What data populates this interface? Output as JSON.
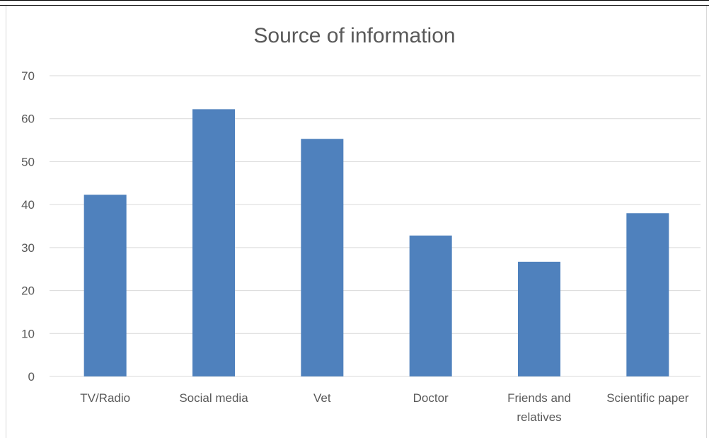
{
  "chart_data": {
    "type": "bar",
    "title": "Source of information",
    "categories": [
      "TV/Radio",
      "Social media",
      "Vet",
      "Doctor",
      "Friends and relatives",
      "Scientific paper"
    ],
    "category_lines": [
      [
        "TV/Radio"
      ],
      [
        "Social media"
      ],
      [
        "Vet"
      ],
      [
        "Doctor"
      ],
      [
        "Friends and",
        "relatives"
      ],
      [
        "Scientific paper"
      ]
    ],
    "values": [
      42.3,
      62.2,
      55.3,
      32.8,
      26.7,
      38.0
    ],
    "y_ticks": [
      "0",
      "10",
      "20",
      "30",
      "40",
      "50",
      "60",
      "70"
    ],
    "ylim": [
      0,
      70
    ],
    "grid": true,
    "legend": "none",
    "bar_color": "#4f81bd",
    "grid_color": "#d9d9d9"
  }
}
